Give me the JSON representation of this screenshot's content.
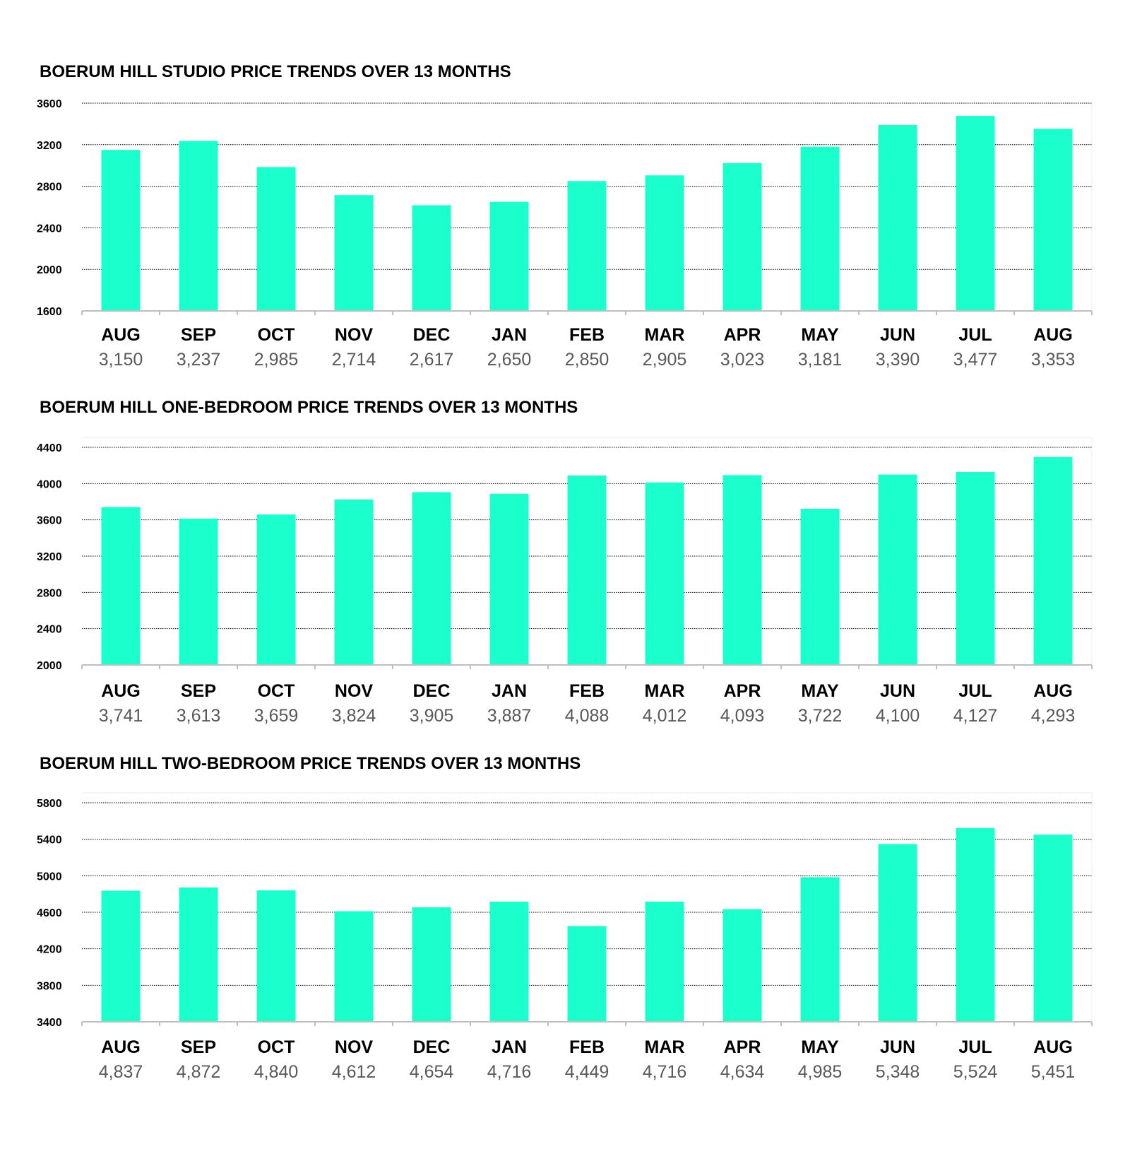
{
  "colors": {
    "bar": "#1affcc",
    "gridline": "#000000",
    "axis": "#bfbfbf",
    "value_text": "#595959"
  },
  "chart_data": [
    {
      "type": "bar",
      "title": "BOERUM HILL STUDIO PRICE TRENDS OVER 13 MONTHS",
      "categories": [
        "AUG",
        "SEP",
        "OCT",
        "NOV",
        "DEC",
        "JAN",
        "FEB",
        "MAR",
        "APR",
        "MAY",
        "JUN",
        "JUL",
        "AUG"
      ],
      "values": [
        3150,
        3237,
        2985,
        2714,
        2617,
        2650,
        2850,
        2905,
        3023,
        3181,
        3390,
        3477,
        3353
      ],
      "value_labels": [
        "3,150",
        "3,237",
        "2,985",
        "2,714",
        "2,617",
        "2,650",
        "2,850",
        "2,905",
        "3,023",
        "3,181",
        "3,390",
        "3,477",
        "3,353"
      ],
      "yticks": [
        "1600",
        "2000",
        "2400",
        "2800",
        "3200",
        "3600"
      ],
      "ylim": [
        1600,
        3600
      ],
      "grid": true,
      "xlabel": "",
      "ylabel": ""
    },
    {
      "type": "bar",
      "title": "BOERUM HILL ONE-BEDROOM PRICE TRENDS OVER 13 MONTHS",
      "categories": [
        "AUG",
        "SEP",
        "OCT",
        "NOV",
        "DEC",
        "JAN",
        "FEB",
        "MAR",
        "APR",
        "MAY",
        "JUN",
        "JUL",
        "AUG"
      ],
      "values": [
        3741,
        3613,
        3659,
        3824,
        3905,
        3887,
        4088,
        4012,
        4093,
        3722,
        4100,
        4127,
        4293
      ],
      "value_labels": [
        "3,741",
        "3,613",
        "3,659",
        "3,824",
        "3,905",
        "3,887",
        "4,088",
        "4,012",
        "4,093",
        "3,722",
        "4,100",
        "4,127",
        "4,293"
      ],
      "yticks": [
        "2000",
        "2400",
        "2800",
        "3200",
        "3600",
        "4000",
        "4400"
      ],
      "ylim": [
        2000,
        4400
      ],
      "grid": true,
      "xlabel": "",
      "ylabel": ""
    },
    {
      "type": "bar",
      "title": "BOERUM HILL TWO-BEDROOM PRICE TRENDS OVER 13 MONTHS",
      "categories": [
        "AUG",
        "SEP",
        "OCT",
        "NOV",
        "DEC",
        "JAN",
        "FEB",
        "MAR",
        "APR",
        "MAY",
        "JUN",
        "JUL",
        "AUG"
      ],
      "values": [
        4837,
        4872,
        4840,
        4612,
        4654,
        4716,
        4449,
        4716,
        4634,
        4985,
        5348,
        5524,
        5451
      ],
      "value_labels": [
        "4,837",
        "4,872",
        "4,840",
        "4,612",
        "4,654",
        "4,716",
        "4,449",
        "4,716",
        "4,634",
        "4,985",
        "5,348",
        "5,524",
        "5,451"
      ],
      "yticks": [
        "3400",
        "3800",
        "4200",
        "4600",
        "5000",
        "5400",
        "5800"
      ],
      "ylim": [
        3400,
        5800
      ],
      "grid": true,
      "xlabel": "",
      "ylabel": ""
    }
  ]
}
